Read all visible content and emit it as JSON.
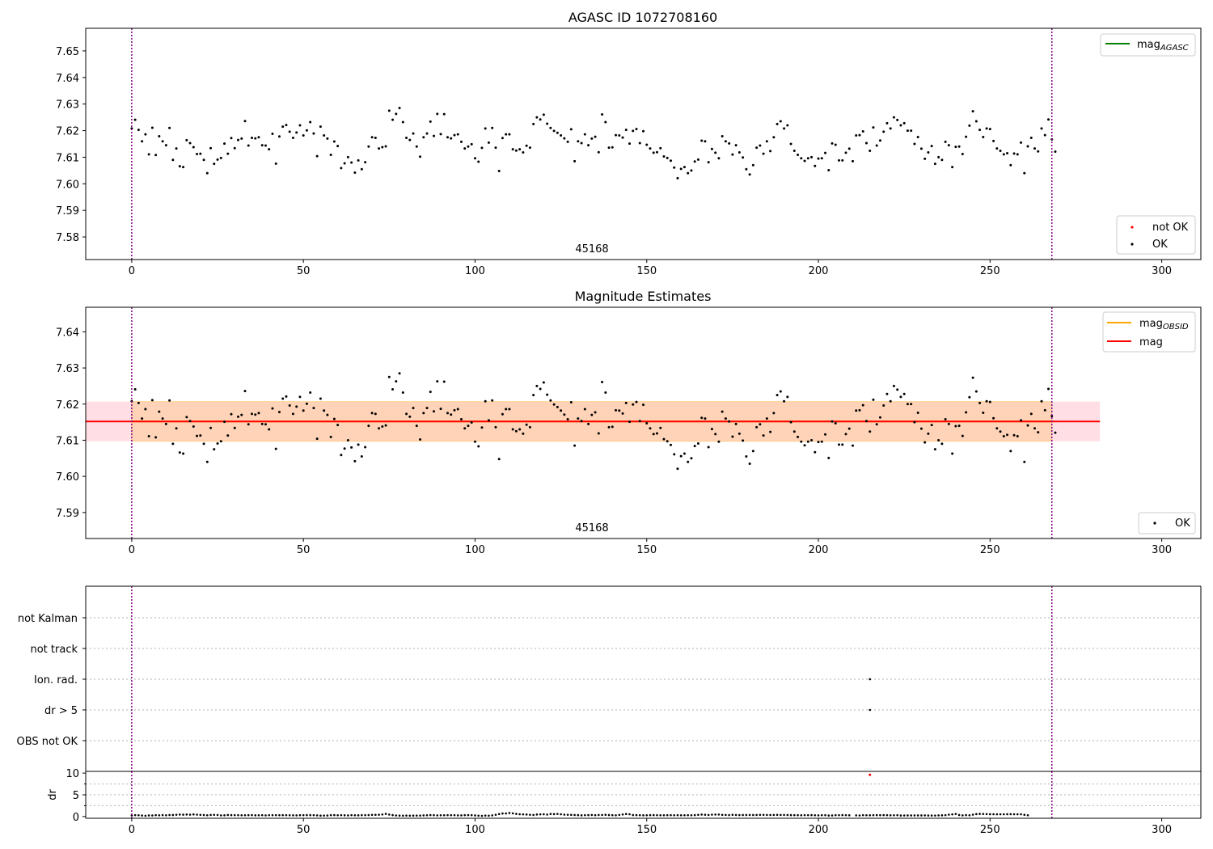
{
  "figure": {
    "colors": {
      "ok_point": "#000000",
      "not_ok_point": "#ff0000",
      "obsid_boundary": "#800080",
      "mag_agasc_line": "#008000",
      "mag_obsid_line": "#ffa500",
      "mag_line": "#ff0000",
      "obsid_band": "#ffa500",
      "mag_band": "#ffc0cb",
      "grid": "#b0b0b0"
    }
  },
  "chart_data": [
    {
      "type": "scatter",
      "title": "AGASC ID 1072708160",
      "xlim": [
        -13.4,
        311.4
      ],
      "ylim": [
        7.5715,
        7.6585
      ],
      "xticks": [
        0,
        50,
        100,
        150,
        200,
        250,
        300
      ],
      "yticks": [
        7.58,
        7.59,
        7.6,
        7.61,
        7.62,
        7.63,
        7.64,
        7.65
      ],
      "obsid_boundaries": [
        0,
        268
      ],
      "obsid_label": "45168",
      "series": [
        {
          "name": "not OK",
          "color": "#ff0000",
          "x": [],
          "y": []
        },
        {
          "name": "OK",
          "color": "#000000",
          "x_start": 0,
          "x_step": 1,
          "y": [
            7.6208,
            7.6241,
            7.6203,
            7.616,
            7.6186,
            7.6111,
            7.6211,
            7.6108,
            7.6179,
            7.616,
            7.6145,
            7.621,
            7.609,
            7.6133,
            7.6066,
            7.6063,
            7.6164,
            7.6153,
            7.6138,
            7.6112,
            7.6113,
            7.609,
            7.604,
            7.6134,
            7.6075,
            7.6091,
            7.6097,
            7.6151,
            7.6113,
            7.6172,
            7.6134,
            7.6165,
            7.617,
            7.6236,
            7.6144,
            7.6173,
            7.6171,
            7.6175,
            7.6145,
            7.6144,
            7.613,
            7.6188,
            7.6076,
            7.6178,
            7.6215,
            7.6221,
            7.6196,
            7.6173,
            7.6193,
            7.622,
            7.6182,
            7.6201,
            7.6232,
            7.6189,
            7.6104,
            7.6215,
            7.6182,
            7.617,
            7.6109,
            7.6159,
            7.6142,
            7.6059,
            7.6077,
            7.61,
            7.608,
            7.6042,
            7.6088,
            7.6055,
            7.6081,
            7.614,
            7.6175,
            7.6173,
            7.6133,
            7.6138,
            7.6141,
            7.6275,
            7.6241,
            7.6263,
            7.6285,
            7.6232,
            7.6173,
            7.6165,
            7.6189,
            7.614,
            7.6102,
            7.6175,
            7.6189,
            7.6234,
            7.618,
            7.6263,
            7.6187,
            7.6262,
            7.6175,
            7.6171,
            7.6183,
            7.6186,
            7.6158,
            7.6133,
            7.614,
            7.6149,
            7.6096,
            7.6083,
            7.6135,
            7.6208,
            7.6155,
            7.621,
            7.6136,
            7.6048,
            7.6172,
            7.6186,
            7.6186,
            7.613,
            7.6125,
            7.613,
            7.6118,
            7.6143,
            7.6136,
            7.6225,
            7.625,
            7.6242,
            7.626,
            7.6226,
            7.621,
            7.6199,
            7.6192,
            7.6182,
            7.6171,
            7.6158,
            7.6205,
            7.6085,
            7.616,
            7.6153,
            7.6186,
            7.6145,
            7.617,
            7.6177,
            7.6119,
            7.6261,
            7.6232,
            7.6136,
            7.6137,
            7.6183,
            7.6182,
            7.6174,
            7.6203,
            7.6151,
            7.6199,
            7.6206,
            7.6153,
            7.6198,
            7.6147,
            7.6133,
            7.6117,
            7.6119,
            7.6134,
            7.6103,
            7.6097,
            7.6087,
            7.6061,
            7.6021,
            7.6056,
            7.6063,
            7.604,
            7.605,
            7.6084,
            7.6091,
            7.6162,
            7.616,
            7.6081,
            7.6131,
            7.6117,
            7.6096,
            7.6179,
            7.616,
            7.6152,
            7.611,
            7.6145,
            7.6118,
            7.6099,
            7.6055,
            7.6035,
            7.607,
            7.6136,
            7.6144,
            7.6113,
            7.616,
            7.6123,
            7.6175,
            7.6225,
            7.6235,
            7.6208,
            7.622,
            7.615,
            7.6124,
            7.6109,
            7.6096,
            7.6086,
            7.6096,
            7.61,
            7.6067,
            7.6095,
            7.6096,
            7.6116,
            7.6051,
            7.6152,
            7.6147,
            7.6088,
            7.6088,
            7.6117,
            7.6132,
            7.6085,
            7.6182,
            7.6183,
            7.6197,
            7.6153,
            7.6124,
            7.6212,
            7.6144,
            7.6163,
            7.6196,
            7.6228,
            7.6208,
            7.625,
            7.624,
            7.622,
            7.6228,
            7.62,
            7.62,
            7.615,
            7.6176,
            7.6132,
            7.6094,
            7.6118,
            7.6142,
            7.6075,
            7.61,
            7.609,
            7.6158,
            7.6145,
            7.6063,
            7.6139,
            7.614,
            7.6112,
            7.6177,
            7.6219,
            7.6273,
            7.6235,
            7.6203,
            7.6176,
            7.6208,
            7.6206,
            7.6161,
            7.6133,
            7.6124,
            7.6111,
            7.6115,
            7.607,
            7.6114,
            7.6111,
            7.6155,
            7.604,
            7.6141,
            7.6173,
            7.6133,
            7.6122,
            7.6208,
            7.6183,
            7.6242,
            7.6167,
            7.6121
          ]
        }
      ],
      "legends": [
        {
          "position": "upper right",
          "entries": [
            {
              "label": "mag",
              "subscript": "AGASC",
              "kind": "line",
              "color": "#008000"
            }
          ]
        },
        {
          "position": "lower right",
          "entries": [
            {
              "label": "not OK",
              "kind": "point",
              "color": "#ff0000"
            },
            {
              "label": "OK",
              "kind": "point",
              "color": "#000000"
            }
          ]
        }
      ]
    },
    {
      "type": "scatter",
      "title": "Magnitude Estimates",
      "xlim": [
        -13.4,
        311.4
      ],
      "ylim": [
        7.5828,
        7.6468
      ],
      "xticks": [
        0,
        50,
        100,
        150,
        200,
        250,
        300
      ],
      "yticks": [
        7.59,
        7.6,
        7.61,
        7.62,
        7.63,
        7.64
      ],
      "obsid_boundaries": [
        0,
        268
      ],
      "obsid_label": "45168",
      "lines": [
        {
          "name": "mag",
          "subscript": "OBSID",
          "color": "#ffa500",
          "y": 7.6152,
          "band": [
            7.6097,
            7.6207
          ],
          "x_range": [
            0,
            268
          ]
        },
        {
          "name": "mag",
          "color": "#ff0000",
          "y": 7.6152,
          "band": [
            7.6097,
            7.6207
          ],
          "x_range": [
            -13.4,
            282
          ]
        }
      ],
      "series": [
        {
          "name": "OK",
          "color": "#000000",
          "x_start": 0,
          "x_step": 1,
          "same_as_panel": 0
        }
      ],
      "legends": [
        {
          "position": "upper right",
          "entries": [
            {
              "label": "mag",
              "subscript": "OBSID",
              "kind": "line",
              "color": "#ffa500"
            },
            {
              "label": "mag",
              "kind": "line",
              "color": "#ff0000"
            }
          ]
        },
        {
          "position": "lower right",
          "entries": [
            {
              "label": "OK",
              "kind": "point",
              "color": "#000000"
            }
          ]
        }
      ]
    },
    {
      "type": "scatter",
      "title": "",
      "xlim": [
        -13.4,
        311.4
      ],
      "xticks": [
        0,
        50,
        100,
        150,
        200,
        250,
        300
      ],
      "obsid_boundaries": [
        0,
        268
      ],
      "categories": [
        "not Kalman",
        "not track",
        "Ion. rad.",
        "dr > 5",
        "OBS not OK"
      ],
      "flags": [
        {
          "category": "Ion. rad.",
          "x": [
            215
          ],
          "color": "#000000"
        },
        {
          "category": "dr > 5",
          "x": [
            215
          ],
          "color": "#000000"
        }
      ]
    },
    {
      "type": "scatter",
      "title": "",
      "ylabel": "dr",
      "xlim": [
        -13.4,
        311.4
      ],
      "ylim": [
        -0.4,
        10.4
      ],
      "xticks": [
        0,
        50,
        100,
        150,
        200,
        250,
        300
      ],
      "yticks": [
        0,
        5,
        10
      ],
      "obsid_boundaries": [
        0,
        268
      ],
      "series": [
        {
          "name": "dr",
          "color": "#000000",
          "x_start": 0,
          "x_step": 1,
          "y": [
            0.28,
            0.31,
            0.3,
            0.24,
            0.18,
            0.26,
            0.25,
            0.32,
            0.29,
            0.33,
            0.3,
            0.35,
            0.35,
            0.41,
            0.45,
            0.42,
            0.47,
            0.43,
            0.49,
            0.44,
            0.39,
            0.35,
            0.3,
            0.36,
            0.39,
            0.36,
            0.27,
            0.28,
            0.35,
            0.33,
            0.32,
            0.31,
            0.29,
            0.3,
            0.31,
            0.33,
            0.28,
            0.3,
            0.32,
            0.27,
            0.32,
            0.31,
            0.32,
            0.31,
            0.31,
            0.31,
            0.3,
            0.28,
            0.27,
            0.31,
            0.32,
            0.33,
            0.33,
            0.31,
            0.27,
            0.21,
            0.23,
            0.24,
            0.31,
            0.33,
            0.3,
            0.32,
            0.28,
            0.27,
            0.32,
            0.29,
            0.28,
            0.31,
            0.32,
            0.34,
            0.38,
            0.4,
            0.41,
            0.48,
            0.61,
            0.45,
            0.33,
            0.25,
            0.21,
            0.2,
            0.22,
            0.2,
            0.21,
            0.22,
            0.23,
            0.27,
            0.3,
            0.34,
            0.31,
            0.27,
            0.3,
            0.29,
            0.31,
            0.31,
            0.31,
            0.27,
            0.27,
            0.31,
            0.33,
            0.31,
            0.26,
            0.2,
            0.16,
            0.22,
            0.2,
            0.27,
            0.41,
            0.57,
            0.7,
            0.71,
            0.82,
            0.73,
            0.61,
            0.53,
            0.5,
            0.47,
            0.41,
            0.36,
            0.47,
            0.51,
            0.52,
            0.45,
            0.58,
            0.56,
            0.6,
            0.53,
            0.43,
            0.41,
            0.39,
            0.35,
            0.33,
            0.28,
            0.32,
            0.33,
            0.36,
            0.31,
            0.36,
            0.37,
            0.4,
            0.35,
            0.31,
            0.29,
            0.37,
            0.48,
            0.58,
            0.53,
            0.34,
            0.33,
            0.31,
            0.28,
            0.29,
            0.33,
            0.33,
            0.31,
            0.3,
            0.3,
            0.31,
            0.32,
            0.3,
            0.31,
            0.3,
            0.3,
            0.31,
            0.3,
            0.33,
            0.39,
            0.45,
            0.41,
            0.37,
            0.44,
            0.45,
            0.46,
            0.38,
            0.37,
            0.34,
            0.4,
            0.36,
            0.34,
            0.35,
            0.35,
            0.37,
            0.35,
            0.36,
            0.38,
            0.38,
            0.37,
            0.36,
            0.37,
            0.38,
            0.37,
            0.36,
            0.35,
            0.33,
            0.31,
            0.31,
            0.3,
            0.32,
            0.32,
            0.33,
            0.29,
            0.27,
            0.31,
            0.31,
            0.24,
            0.25,
            0.31,
            0.32,
            0.33,
            0.31,
            0.29,
            9.6,
            0.27,
            0.25,
            0.31,
            0.3,
            0.29,
            0.31,
            0.33,
            0.31,
            0.33,
            0.31,
            0.29,
            0.3,
            0.31,
            0.24,
            0.25,
            0.26,
            0.26,
            0.26,
            0.26,
            0.26,
            0.27,
            0.24,
            0.24,
            0.23,
            0.27,
            0.28,
            0.32,
            0.43,
            0.5,
            0.59,
            0.35,
            0.27,
            0.33,
            0.3,
            0.44,
            0.56,
            0.61,
            0.59,
            0.57,
            0.54,
            0.53,
            0.52,
            0.52,
            0.53,
            0.54,
            0.55,
            0.53,
            0.52,
            0.52,
            0.4,
            0.3
          ],
          "outliers": [
            {
              "x": 215,
              "y": 9.6,
              "color": "#ff0000"
            }
          ]
        }
      ]
    }
  ]
}
